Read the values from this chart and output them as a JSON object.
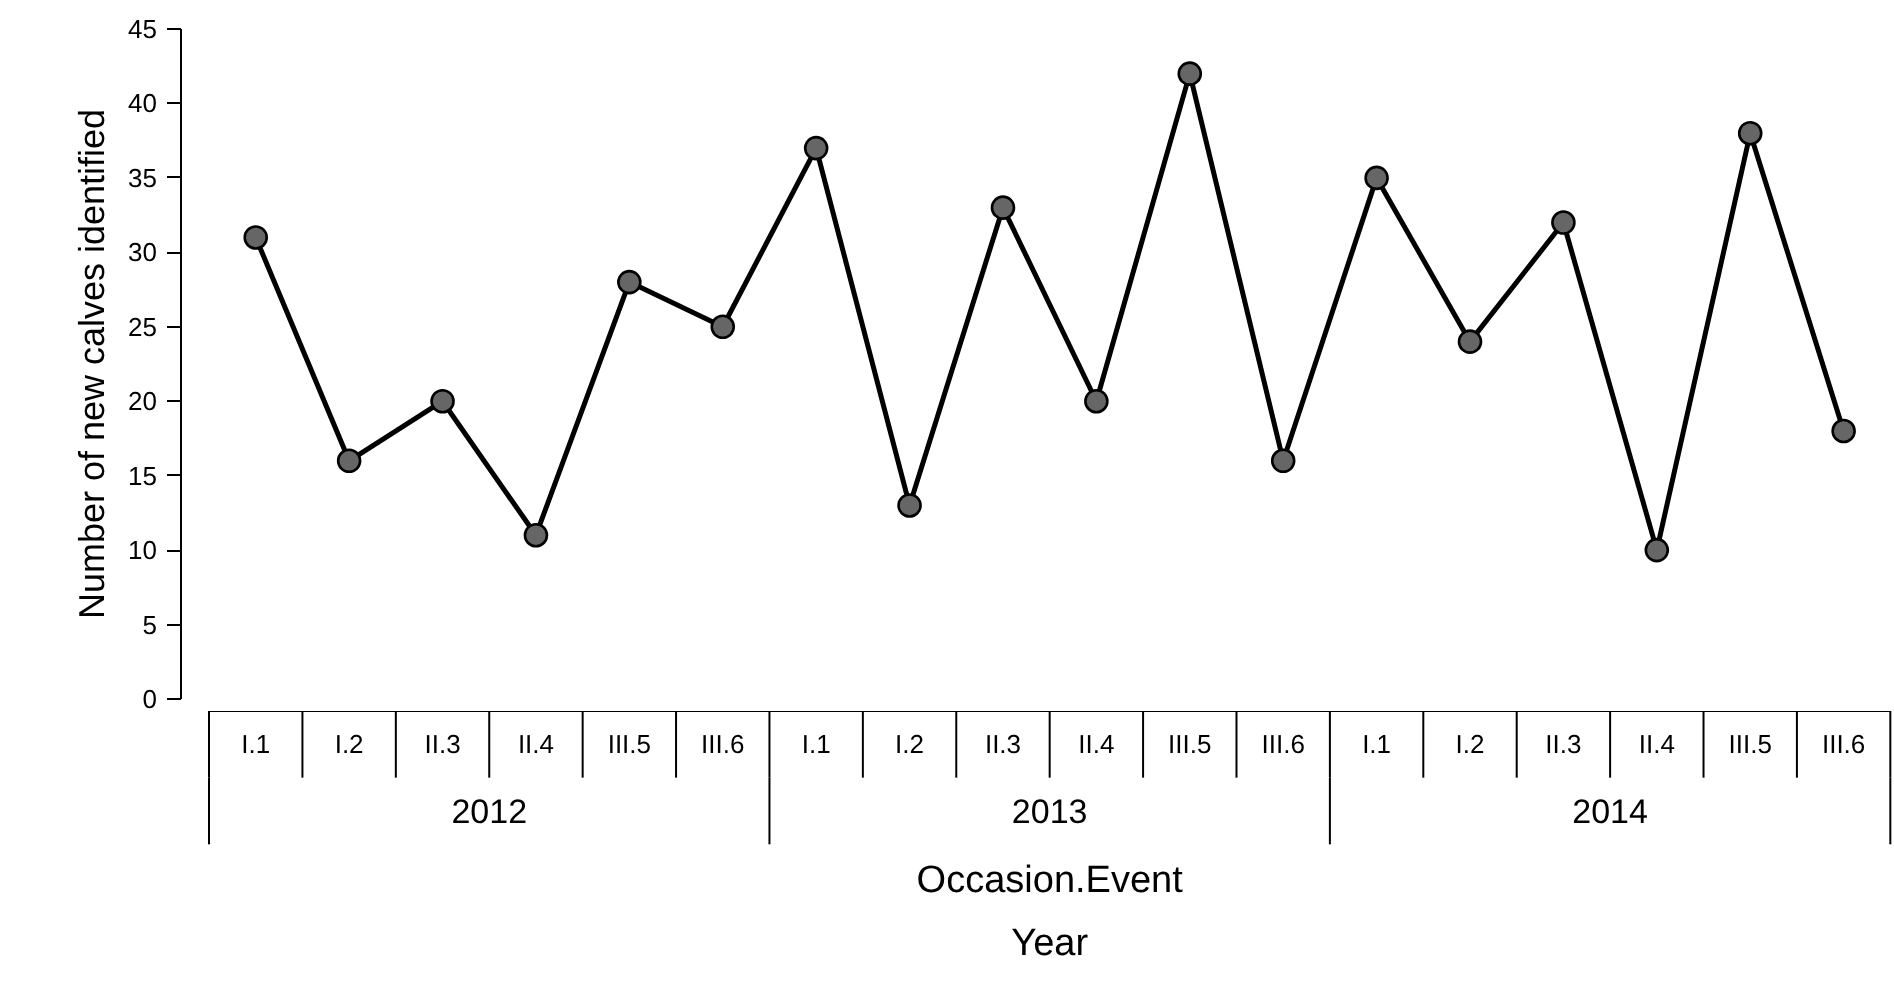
{
  "chart_data": {
    "type": "line",
    "xlabel": "Occasion.Event\nYear",
    "ylabel": "Number of new calves identified",
    "categories": [
      "I.1",
      "I.2",
      "II.3",
      "II.4",
      "III.5",
      "III.6",
      "I.1",
      "I.2",
      "II.3",
      "II.4",
      "III.5",
      "III.6",
      "I.1",
      "I.2",
      "II.3",
      "II.4",
      "III.5",
      "III.6"
    ],
    "annotations": [
      "2012",
      "2013",
      "2014"
    ],
    "series": [
      {
        "color": "#000000",
        "values": [
          31,
          16,
          20,
          11,
          28,
          25,
          37,
          13,
          33,
          20,
          42,
          16,
          35,
          24,
          32,
          10,
          38,
          18
        ]
      }
    ],
    "ylim": [
      0,
      45
    ],
    "yticks": [
      0,
      5,
      10,
      15,
      20,
      25,
      30,
      35,
      40,
      45
    ],
    "grid": false,
    "marker": "circle",
    "line_style": "solid"
  }
}
